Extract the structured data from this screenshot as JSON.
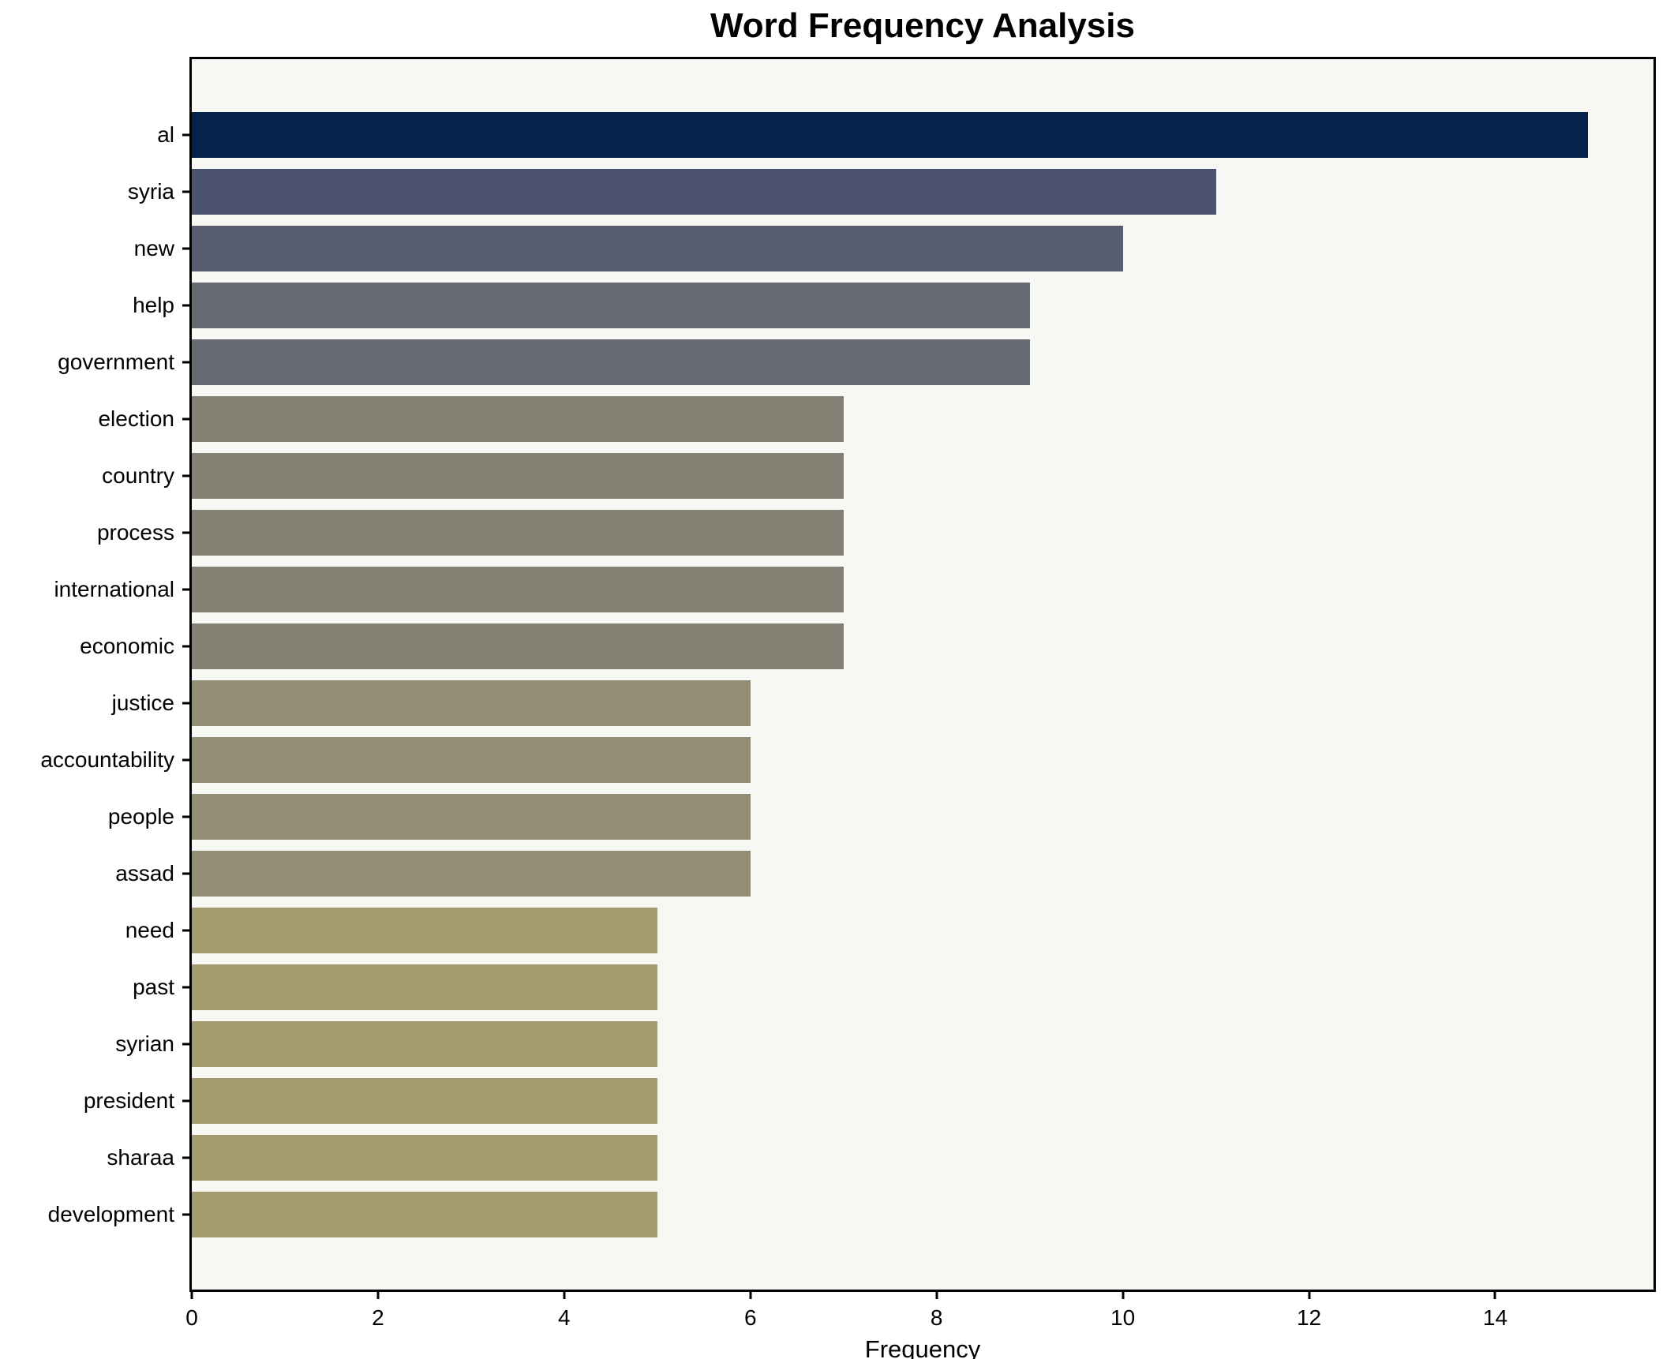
{
  "chart_data": {
    "type": "bar",
    "orientation": "horizontal",
    "title": "Word Frequency Analysis",
    "xlabel": "Frequency",
    "ylabel": "",
    "grid": false,
    "legend": null,
    "xlim": [
      0,
      15.7
    ],
    "x_ticks": [
      0,
      2,
      4,
      6,
      8,
      10,
      12,
      14
    ],
    "plot_background": "#f7f7f4",
    "page_background": "#ffffff",
    "categories": [
      "al",
      "syria",
      "new",
      "help",
      "government",
      "election",
      "country",
      "process",
      "international",
      "economic",
      "justice",
      "accountability",
      "people",
      "assad",
      "need",
      "past",
      "syrian",
      "president",
      "sharaa",
      "development"
    ],
    "values": [
      15,
      11,
      10,
      9,
      9,
      7,
      7,
      7,
      7,
      7,
      6,
      6,
      6,
      6,
      5,
      5,
      5,
      5,
      5,
      5
    ],
    "bar_colors": [
      "#03224c",
      "#4a526e",
      "#575d6e",
      "#666a72",
      "#666a72",
      "#848073",
      "#848073",
      "#848073",
      "#848073",
      "#848073",
      "#938d75",
      "#938d75",
      "#938d75",
      "#938d75",
      "#a59d72",
      "#a59d72",
      "#a59d72",
      "#a59d72",
      "#a59d72",
      "#a59d72"
    ]
  }
}
